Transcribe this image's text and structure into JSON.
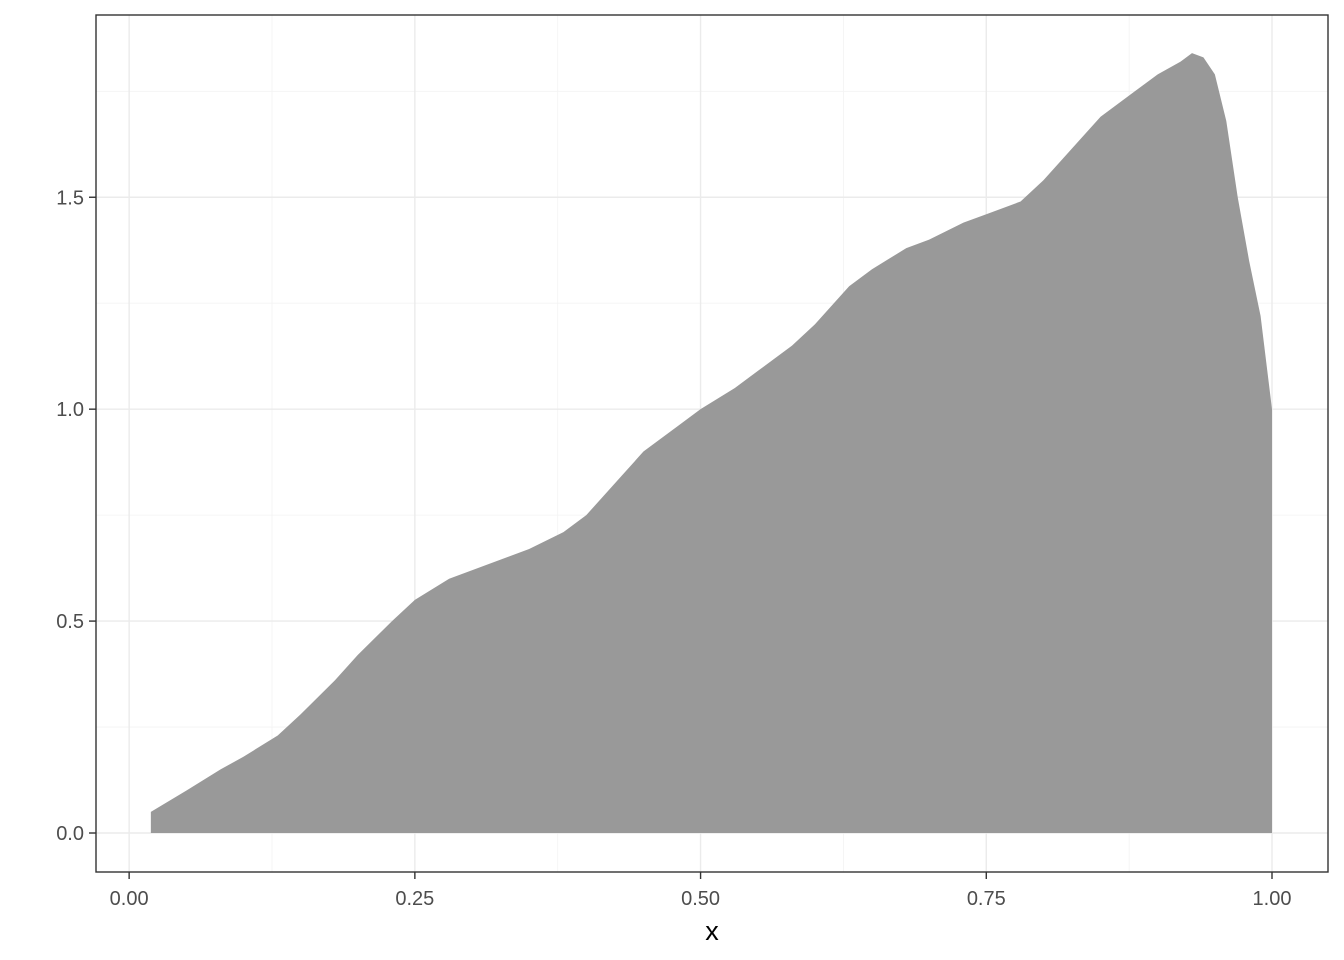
{
  "chart_data": {
    "type": "area",
    "xlabel": "x",
    "ylabel": "",
    "xlim": [
      -0.029,
      1.049
    ],
    "ylim": [
      -0.092,
      1.93
    ],
    "x_ticks": [
      "0.00",
      "0.25",
      "0.50",
      "0.75",
      "1.00"
    ],
    "x_tick_values": [
      0,
      0.25,
      0.5,
      0.75,
      1.0
    ],
    "y_ticks": [
      "0.0",
      "0.5",
      "1.0",
      "1.5"
    ],
    "y_tick_values": [
      0,
      0.5,
      1.0,
      1.5
    ],
    "grid": true,
    "fill_color": "#999999",
    "series": [
      {
        "x": [
          0.019,
          0.05,
          0.08,
          0.1,
          0.13,
          0.15,
          0.18,
          0.2,
          0.23,
          0.25,
          0.28,
          0.3,
          0.33,
          0.35,
          0.38,
          0.4,
          0.43,
          0.45,
          0.48,
          0.5,
          0.53,
          0.55,
          0.58,
          0.6,
          0.63,
          0.65,
          0.68,
          0.7,
          0.73,
          0.75,
          0.78,
          0.8,
          0.83,
          0.85,
          0.88,
          0.9,
          0.92,
          0.93,
          0.94,
          0.95,
          0.96,
          0.97,
          0.98,
          0.99,
          1.0
        ],
        "y": [
          0.05,
          0.1,
          0.15,
          0.18,
          0.23,
          0.28,
          0.36,
          0.42,
          0.5,
          0.55,
          0.6,
          0.62,
          0.65,
          0.67,
          0.71,
          0.75,
          0.84,
          0.9,
          0.96,
          1.0,
          1.05,
          1.09,
          1.15,
          1.2,
          1.29,
          1.33,
          1.38,
          1.4,
          1.44,
          1.46,
          1.49,
          1.54,
          1.63,
          1.69,
          1.75,
          1.79,
          1.82,
          1.84,
          1.83,
          1.79,
          1.68,
          1.5,
          1.35,
          1.22,
          1.0
        ]
      }
    ]
  }
}
